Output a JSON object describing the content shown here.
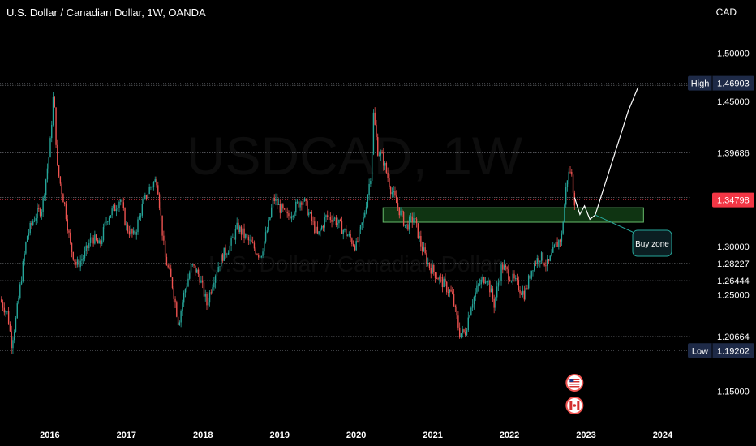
{
  "header": {
    "title": "U.S. Dollar / Canadian Dollar, 1W, OANDA",
    "currency": "CAD",
    "watermark_symbol": "USDCAD, 1W",
    "watermark_name": "U.S. Dollar / Canadian Dollar"
  },
  "colors": {
    "background": "#000000",
    "up": "#26a69a",
    "down": "#ef5350",
    "zone_fill": "#1b5e20",
    "zone_border": "#66bb6a",
    "current_price": "#f23645",
    "high_low_label": "#1e2a47",
    "callout_border": "#26a69a"
  },
  "chart_data": {
    "type": "candlestick",
    "symbol": "USDCAD",
    "timeframe": "1W",
    "xlim": [
      2015.35,
      2024.35
    ],
    "ylim": [
      1.12,
      1.53
    ],
    "x_ticks": [
      {
        "label": "2016",
        "x": 2016
      },
      {
        "label": "2017",
        "x": 2017
      },
      {
        "label": "2018",
        "x": 2018
      },
      {
        "label": "2019",
        "x": 2019
      },
      {
        "label": "2020",
        "x": 2020
      },
      {
        "label": "2021",
        "x": 2021
      },
      {
        "label": "2022",
        "x": 2022
      },
      {
        "label": "2023",
        "x": 2023
      },
      {
        "label": "2024",
        "x": 2024
      }
    ],
    "y_ticks": [
      "1.50000",
      "1.45000",
      "1.30000",
      "1.25000",
      "1.15000"
    ],
    "high": {
      "label": "High",
      "value": "1.46903"
    },
    "low": {
      "label": "Low",
      "value": "1.19202"
    },
    "current_price": "1.34798",
    "horizontal_levels": [
      "1.46680",
      "1.39686",
      "1.35061",
      "1.28227",
      "1.26444",
      "1.20664"
    ],
    "buy_zone": {
      "label": "Buy zone",
      "from": 2020.35,
      "to": 2023.75,
      "low": 1.325,
      "high": 1.34
    },
    "projection": [
      [
        2022.85,
        1.3505
      ],
      [
        2022.92,
        1.333
      ],
      [
        2022.98,
        1.342
      ],
      [
        2023.05,
        1.328
      ],
      [
        2023.12,
        1.3325
      ],
      [
        2023.35,
        1.39
      ],
      [
        2023.55,
        1.44
      ],
      [
        2023.68,
        1.465
      ]
    ],
    "close_path": [
      [
        2015.35,
        1.245
      ],
      [
        2015.45,
        1.23
      ],
      [
        2015.5,
        1.2
      ],
      [
        2015.55,
        1.22
      ],
      [
        2015.6,
        1.25
      ],
      [
        2015.7,
        1.31
      ],
      [
        2015.8,
        1.33
      ],
      [
        2015.9,
        1.34
      ],
      [
        2016.0,
        1.4
      ],
      [
        2016.05,
        1.46
      ],
      [
        2016.1,
        1.38
      ],
      [
        2016.2,
        1.34
      ],
      [
        2016.27,
        1.3
      ],
      [
        2016.35,
        1.28
      ],
      [
        2016.45,
        1.29
      ],
      [
        2016.55,
        1.31
      ],
      [
        2016.65,
        1.3
      ],
      [
        2016.75,
        1.33
      ],
      [
        2016.85,
        1.34
      ],
      [
        2016.92,
        1.35
      ],
      [
        2017.0,
        1.32
      ],
      [
        2017.1,
        1.31
      ],
      [
        2017.2,
        1.34
      ],
      [
        2017.3,
        1.36
      ],
      [
        2017.4,
        1.37
      ],
      [
        2017.5,
        1.29
      ],
      [
        2017.6,
        1.26
      ],
      [
        2017.68,
        1.22
      ],
      [
        2017.75,
        1.25
      ],
      [
        2017.85,
        1.28
      ],
      [
        2017.95,
        1.27
      ],
      [
        2018.05,
        1.24
      ],
      [
        2018.15,
        1.27
      ],
      [
        2018.25,
        1.29
      ],
      [
        2018.35,
        1.3
      ],
      [
        2018.45,
        1.32
      ],
      [
        2018.55,
        1.31
      ],
      [
        2018.65,
        1.3
      ],
      [
        2018.75,
        1.29
      ],
      [
        2018.85,
        1.32
      ],
      [
        2018.92,
        1.35
      ],
      [
        2019.0,
        1.34
      ],
      [
        2019.1,
        1.33
      ],
      [
        2019.2,
        1.34
      ],
      [
        2019.3,
        1.35
      ],
      [
        2019.4,
        1.33
      ],
      [
        2019.5,
        1.31
      ],
      [
        2019.6,
        1.33
      ],
      [
        2019.7,
        1.33
      ],
      [
        2019.8,
        1.32
      ],
      [
        2019.9,
        1.31
      ],
      [
        2020.0,
        1.3
      ],
      [
        2020.1,
        1.33
      ],
      [
        2020.2,
        1.38
      ],
      [
        2020.22,
        1.44
      ],
      [
        2020.28,
        1.4
      ],
      [
        2020.35,
        1.39
      ],
      [
        2020.45,
        1.36
      ],
      [
        2020.55,
        1.34
      ],
      [
        2020.65,
        1.32
      ],
      [
        2020.75,
        1.33
      ],
      [
        2020.85,
        1.3
      ],
      [
        2020.95,
        1.28
      ],
      [
        2021.05,
        1.27
      ],
      [
        2021.15,
        1.26
      ],
      [
        2021.25,
        1.25
      ],
      [
        2021.35,
        1.21
      ],
      [
        2021.42,
        1.21
      ],
      [
        2021.5,
        1.24
      ],
      [
        2021.6,
        1.26
      ],
      [
        2021.7,
        1.27
      ],
      [
        2021.8,
        1.24
      ],
      [
        2021.9,
        1.28
      ],
      [
        2022.0,
        1.27
      ],
      [
        2022.1,
        1.26
      ],
      [
        2022.2,
        1.25
      ],
      [
        2022.3,
        1.28
      ],
      [
        2022.4,
        1.29
      ],
      [
        2022.5,
        1.28
      ],
      [
        2022.6,
        1.3
      ],
      [
        2022.68,
        1.31
      ],
      [
        2022.75,
        1.37
      ],
      [
        2022.8,
        1.38
      ],
      [
        2022.85,
        1.34798
      ]
    ],
    "candle_count": 400
  }
}
